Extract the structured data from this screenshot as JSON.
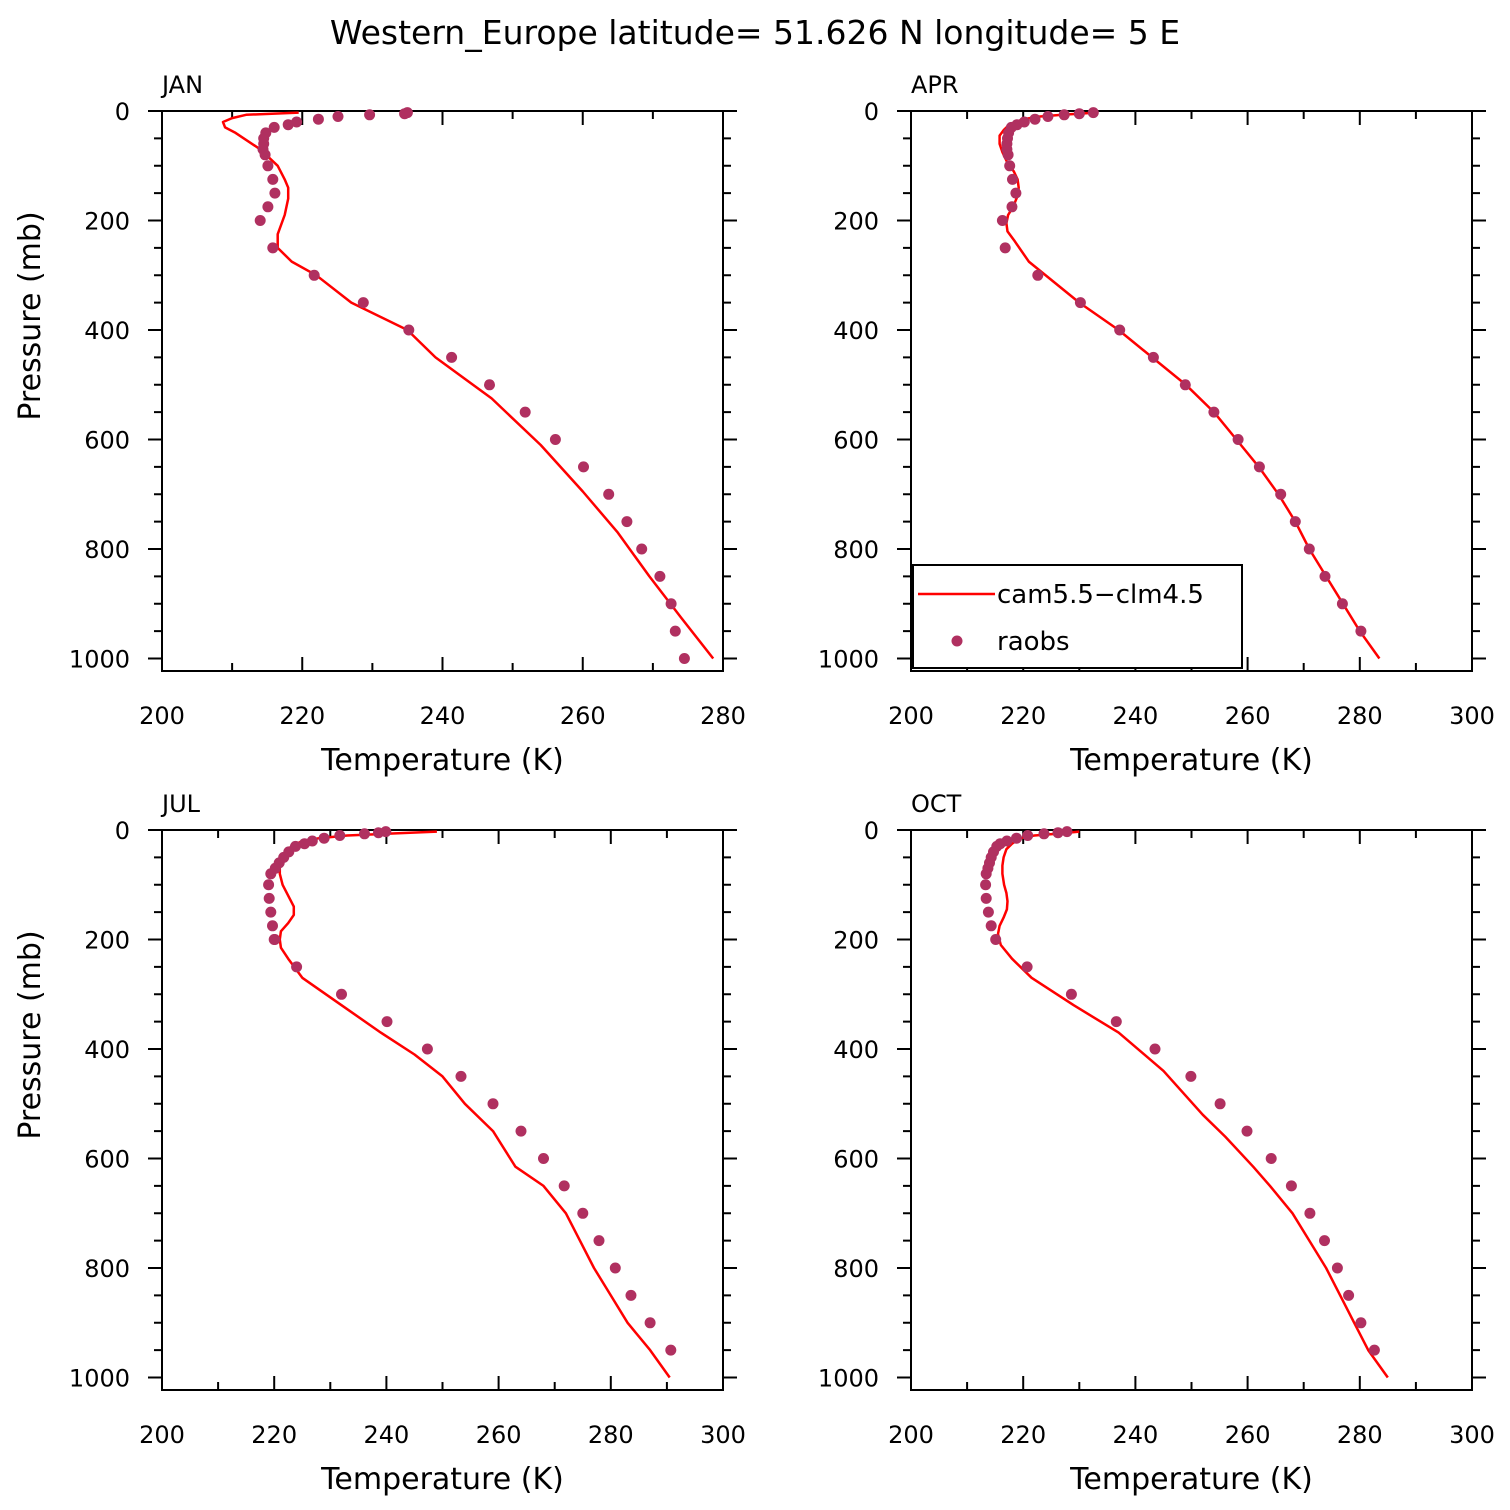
{
  "title": "Western_Europe  latitude= 51.626 N longitude= 5 E",
  "colors": {
    "model_line": "#ff0000",
    "obs_marker": "#b03060",
    "axes": "#000000",
    "background": "#ffffff"
  },
  "legend": {
    "entries": [
      {
        "label": "cam5.5−clm4.5"
      },
      {
        "label": "raobs"
      }
    ]
  },
  "chart_data": [
    {
      "type": "line",
      "panel_label": "JAN",
      "xlabel": "Temperature (K)",
      "ylabel": "Pressure (mb)",
      "xlim": [
        200,
        280
      ],
      "ylim": [
        1000,
        0
      ],
      "xticks": [
        200,
        220,
        240,
        260,
        280
      ],
      "yticks": [
        0,
        200,
        400,
        600,
        800,
        1000
      ],
      "series": [
        {
          "name": "cam5.5−clm4.5",
          "style": "line",
          "x": [
            219.5,
            212,
            210,
            208.7,
            209,
            210.5,
            214,
            216.5,
            217.5,
            218,
            218,
            217.5,
            216.5,
            216.5,
            218.5,
            222,
            227,
            235,
            239,
            247,
            254,
            260,
            265,
            269.5,
            274,
            278.6
          ],
          "y": [
            3,
            7,
            13,
            20,
            30,
            40,
            70,
            100,
            125,
            140,
            160,
            190,
            225,
            250,
            275,
            300,
            350,
            400,
            450,
            525,
            610,
            695,
            770,
            850,
            925,
            1000
          ]
        },
        {
          "name": "raobs",
          "style": "markers",
          "x": [
            235,
            234.6,
            229.6,
            225.1,
            222.3,
            219.2,
            218,
            216,
            214.8,
            214.5,
            214.5,
            214.4,
            214.7,
            215.1,
            215.8,
            216.1,
            215.1,
            214,
            215.8,
            221.7,
            228.7,
            235.2,
            241.3,
            246.7,
            251.8,
            256.1,
            260.1,
            263.7,
            266.3,
            268.4,
            271,
            272.6,
            273.2,
            274.5
          ],
          "y": [
            3,
            5,
            7,
            10,
            15,
            20,
            25,
            30,
            40,
            50,
            60,
            70,
            80,
            100,
            125,
            150,
            175,
            200,
            250,
            300,
            350,
            400,
            450,
            500,
            550,
            600,
            650,
            700,
            750,
            800,
            850,
            900,
            950,
            1000
          ]
        }
      ]
    },
    {
      "type": "line",
      "panel_label": "APR",
      "xlabel": "Temperature (K)",
      "ylabel": "",
      "xlim": [
        200,
        300
      ],
      "ylim": [
        1000,
        0
      ],
      "xticks": [
        200,
        220,
        240,
        260,
        280,
        300
      ],
      "yticks": [
        0,
        200,
        400,
        600,
        800,
        1000
      ],
      "series": [
        {
          "name": "cam5.5−clm4.5",
          "style": "line",
          "x": [
            233,
            227,
            223,
            220,
            217.5,
            216.5,
            215.8,
            215.8,
            216.3,
            217.2,
            218.3,
            219,
            219.2,
            219,
            218.2,
            217.3,
            217,
            217.2,
            218.5,
            221,
            230,
            237,
            243,
            249,
            254,
            258,
            262,
            265.5,
            268.5,
            271,
            274,
            277,
            280,
            283.5
          ],
          "y": [
            3,
            7,
            10,
            15,
            25,
            35,
            45,
            60,
            75,
            95,
            110,
            125,
            140,
            155,
            175,
            190,
            205,
            220,
            238,
            275,
            350,
            400,
            450,
            500,
            550,
            600,
            650,
            700,
            750,
            800,
            850,
            900,
            950,
            1000
          ]
        },
        {
          "name": "raobs",
          "style": "markers",
          "x": [
            232.5,
            230,
            227.3,
            224.4,
            222.1,
            220.2,
            218.9,
            217.9,
            217.4,
            217.2,
            217.1,
            217.1,
            217.3,
            217.6,
            218.1,
            218.7,
            218,
            216.3,
            216.8,
            222.6,
            230.2,
            237.2,
            243.2,
            248.9,
            254,
            258.3,
            262.1,
            265.9,
            268.5,
            271,
            273.8,
            276.9,
            280.2
          ],
          "y": [
            3,
            5,
            7,
            10,
            15,
            20,
            25,
            30,
            40,
            50,
            60,
            70,
            80,
            100,
            125,
            150,
            175,
            200,
            250,
            300,
            350,
            400,
            450,
            500,
            550,
            600,
            650,
            700,
            750,
            800,
            850,
            900,
            950
          ]
        }
      ]
    },
    {
      "type": "line",
      "panel_label": "JUL",
      "xlabel": "Temperature (K)",
      "ylabel": "Pressure (mb)",
      "xlim": [
        200,
        300
      ],
      "ylim": [
        1000,
        0
      ],
      "xticks": [
        200,
        220,
        240,
        260,
        280,
        300
      ],
      "yticks": [
        0,
        200,
        400,
        600,
        800,
        1000
      ],
      "series": [
        {
          "name": "cam5.5−clm4.5",
          "style": "line",
          "x": [
            249,
            240,
            233,
            228,
            225,
            223,
            222,
            221,
            221,
            221.5,
            222.5,
            223.5,
            223.5,
            222.5,
            221.2,
            221,
            221.2,
            222.5,
            225,
            232,
            239,
            245,
            250,
            254,
            259,
            263,
            268,
            272,
            274.5,
            277,
            280,
            283,
            287,
            290.5
          ],
          "y": [
            3,
            7,
            10,
            15,
            20,
            30,
            45,
            60,
            80,
            100,
            120,
            140,
            155,
            170,
            185,
            200,
            215,
            235,
            270,
            320,
            370,
            410,
            450,
            500,
            550,
            615,
            650,
            700,
            750,
            800,
            850,
            900,
            950,
            1000
          ]
        },
        {
          "name": "raobs",
          "style": "markers",
          "x": [
            239.9,
            238.6,
            236.1,
            231.7,
            228.9,
            226.8,
            225.4,
            223.8,
            222.6,
            221.7,
            220.9,
            220.2,
            219.4,
            219,
            219.1,
            219.4,
            219.7,
            220,
            220.1,
            224,
            232,
            240.1,
            247.3,
            253.3,
            259,
            264,
            268,
            271.7,
            275,
            277.9,
            280.8,
            283.6,
            287,
            290.7
          ],
          "y": [
            3,
            5,
            7,
            10,
            15,
            20,
            25,
            30,
            40,
            50,
            60,
            70,
            80,
            100,
            125,
            150,
            175,
            200,
            200,
            250,
            300,
            350,
            400,
            450,
            500,
            550,
            600,
            650,
            700,
            750,
            800,
            850,
            900,
            950
          ]
        }
      ]
    },
    {
      "type": "line",
      "panel_label": "OCT",
      "xlabel": "Temperature (K)",
      "ylabel": "",
      "xlim": [
        200,
        300
      ],
      "ylim": [
        1000,
        0
      ],
      "xticks": [
        200,
        220,
        240,
        260,
        280,
        300
      ],
      "yticks": [
        0,
        200,
        400,
        600,
        800,
        1000
      ],
      "series": [
        {
          "name": "cam5.5−clm4.5",
          "style": "line",
          "x": [
            230,
            226,
            222,
            219.5,
            218,
            217,
            216.5,
            216.3,
            216.3,
            216.6,
            217,
            217.2,
            217.1,
            216.5,
            215.8,
            215.5,
            216,
            218,
            221.5,
            229,
            237,
            245,
            252,
            256,
            261,
            264,
            268,
            271,
            274,
            276.5,
            279,
            281.5,
            285
          ],
          "y": [
            3,
            7,
            10,
            15,
            25,
            35,
            50,
            65,
            80,
            100,
            115,
            130,
            145,
            160,
            175,
            190,
            210,
            235,
            270,
            320,
            370,
            440,
            520,
            560,
            615,
            650,
            700,
            750,
            800,
            850,
            900,
            950,
            1000
          ]
        },
        {
          "name": "raobs",
          "style": "markers",
          "x": [
            227.8,
            226.2,
            223.7,
            220.8,
            218.8,
            217.1,
            215.9,
            215.3,
            214.7,
            214.3,
            214,
            213.7,
            213.4,
            213.3,
            213.4,
            213.8,
            214.3,
            215.1,
            220.7,
            228.6,
            236.6,
            243.5,
            249.9,
            255.1,
            259.9,
            264.2,
            267.8,
            271.1,
            273.7,
            276,
            278,
            280.2,
            282.6
          ],
          "y": [
            3,
            5,
            7,
            10,
            15,
            20,
            25,
            30,
            40,
            50,
            60,
            70,
            80,
            100,
            125,
            150,
            175,
            200,
            250,
            300,
            350,
            400,
            450,
            500,
            550,
            600,
            650,
            700,
            750,
            800,
            850,
            900,
            950
          ]
        }
      ]
    }
  ]
}
